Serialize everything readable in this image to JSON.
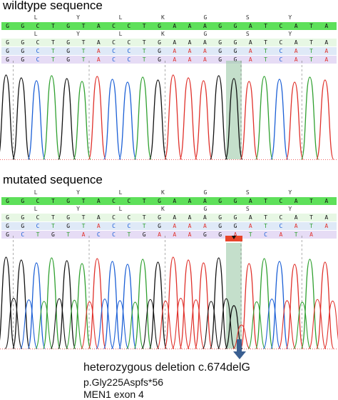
{
  "panels": [
    {
      "title": "wildtype sequence",
      "aa_row1": [
        "",
        "L",
        "",
        "Y",
        "",
        "L",
        "",
        "K",
        "",
        "G",
        "",
        "S",
        "",
        "Y",
        "",
        ""
      ],
      "consensus": [
        "G",
        "G",
        "C",
        "T",
        "G",
        "T",
        "A",
        "C",
        "C",
        "T",
        "G",
        "A",
        "A",
        "A",
        "G",
        "G",
        "A",
        "T",
        "C",
        "A",
        "T",
        "A"
      ],
      "aa_row2": [
        "",
        "L",
        "",
        "Y",
        "",
        "L",
        "",
        "K",
        "",
        "G",
        "",
        "S",
        "",
        "Y",
        "",
        ""
      ],
      "read1": [
        "G",
        "G",
        "C",
        "T",
        "G",
        "T",
        "A",
        "C",
        "C",
        "T",
        "G",
        "A",
        "A",
        "A",
        "G",
        "G",
        "A",
        "T",
        "C",
        "A",
        "T",
        "A"
      ],
      "read2": [
        "G",
        "G",
        "C",
        "T",
        "G",
        "T",
        "A",
        "C",
        "C",
        "T",
        "G",
        "A",
        "A",
        "A",
        "G",
        "G",
        "A",
        "T",
        "C",
        "A",
        "T",
        "A"
      ],
      "read3": [
        "G",
        "G",
        "C",
        "T",
        "G",
        "T",
        "A",
        "C",
        "C",
        "T",
        "G",
        "A",
        "A",
        "A",
        "G",
        "G",
        "A",
        "T",
        "C",
        "A",
        "T",
        "A"
      ]
    },
    {
      "title": "mutated sequence",
      "aa_row1": [
        "",
        "L",
        "",
        "Y",
        "",
        "L",
        "",
        "K",
        "",
        "G",
        "",
        "S",
        "",
        "Y",
        "",
        ""
      ],
      "consensus": [
        "G",
        "G",
        "C",
        "T",
        "G",
        "T",
        "A",
        "C",
        "C",
        "T",
        "G",
        "A",
        "A",
        "A",
        "G",
        "G",
        "A",
        "T",
        "C",
        "A",
        "T",
        "A"
      ],
      "aa_row2": [
        "",
        "L",
        "",
        "Y",
        "",
        "L",
        "",
        "K",
        "",
        "G",
        "",
        "S",
        "",
        "Y",
        "",
        ""
      ],
      "read1": [
        "G",
        "G",
        "C",
        "T",
        "G",
        "T",
        "A",
        "C",
        "C",
        "T",
        "G",
        "A",
        "A",
        "A",
        "G",
        "G",
        "A",
        "T",
        "C",
        "A",
        "T",
        "A"
      ],
      "read2": [
        "G",
        "G",
        "C",
        "T",
        "G",
        "T",
        "A",
        "C",
        "C",
        "T",
        "G",
        "A",
        "A",
        "A",
        "G",
        "G",
        "A",
        "T",
        "C",
        "A",
        "T",
        "A"
      ],
      "read3": [
        "G",
        "C",
        "T",
        "G",
        "T",
        "A",
        "C",
        "C",
        "T",
        "G",
        "A",
        "A",
        "A",
        "G",
        "G",
        "A",
        "T",
        "C",
        "A",
        "T",
        "A",
        ""
      ]
    }
  ],
  "annotation": {
    "line1": "heterozygous deletion c.674delG",
    "line2": "p.Gly225Aspfs*56",
    "line3": "MEN1 exon 4"
  },
  "colors": {
    "A": "#e0302a",
    "C": "#1b5fd6",
    "G": "#111111",
    "T": "#2fa02f",
    "consensus_bg": "#5ee05a",
    "highlight": "#9cc9a9",
    "deletion_marker": "#e8442a",
    "arrow": "#3a5f91"
  }
}
